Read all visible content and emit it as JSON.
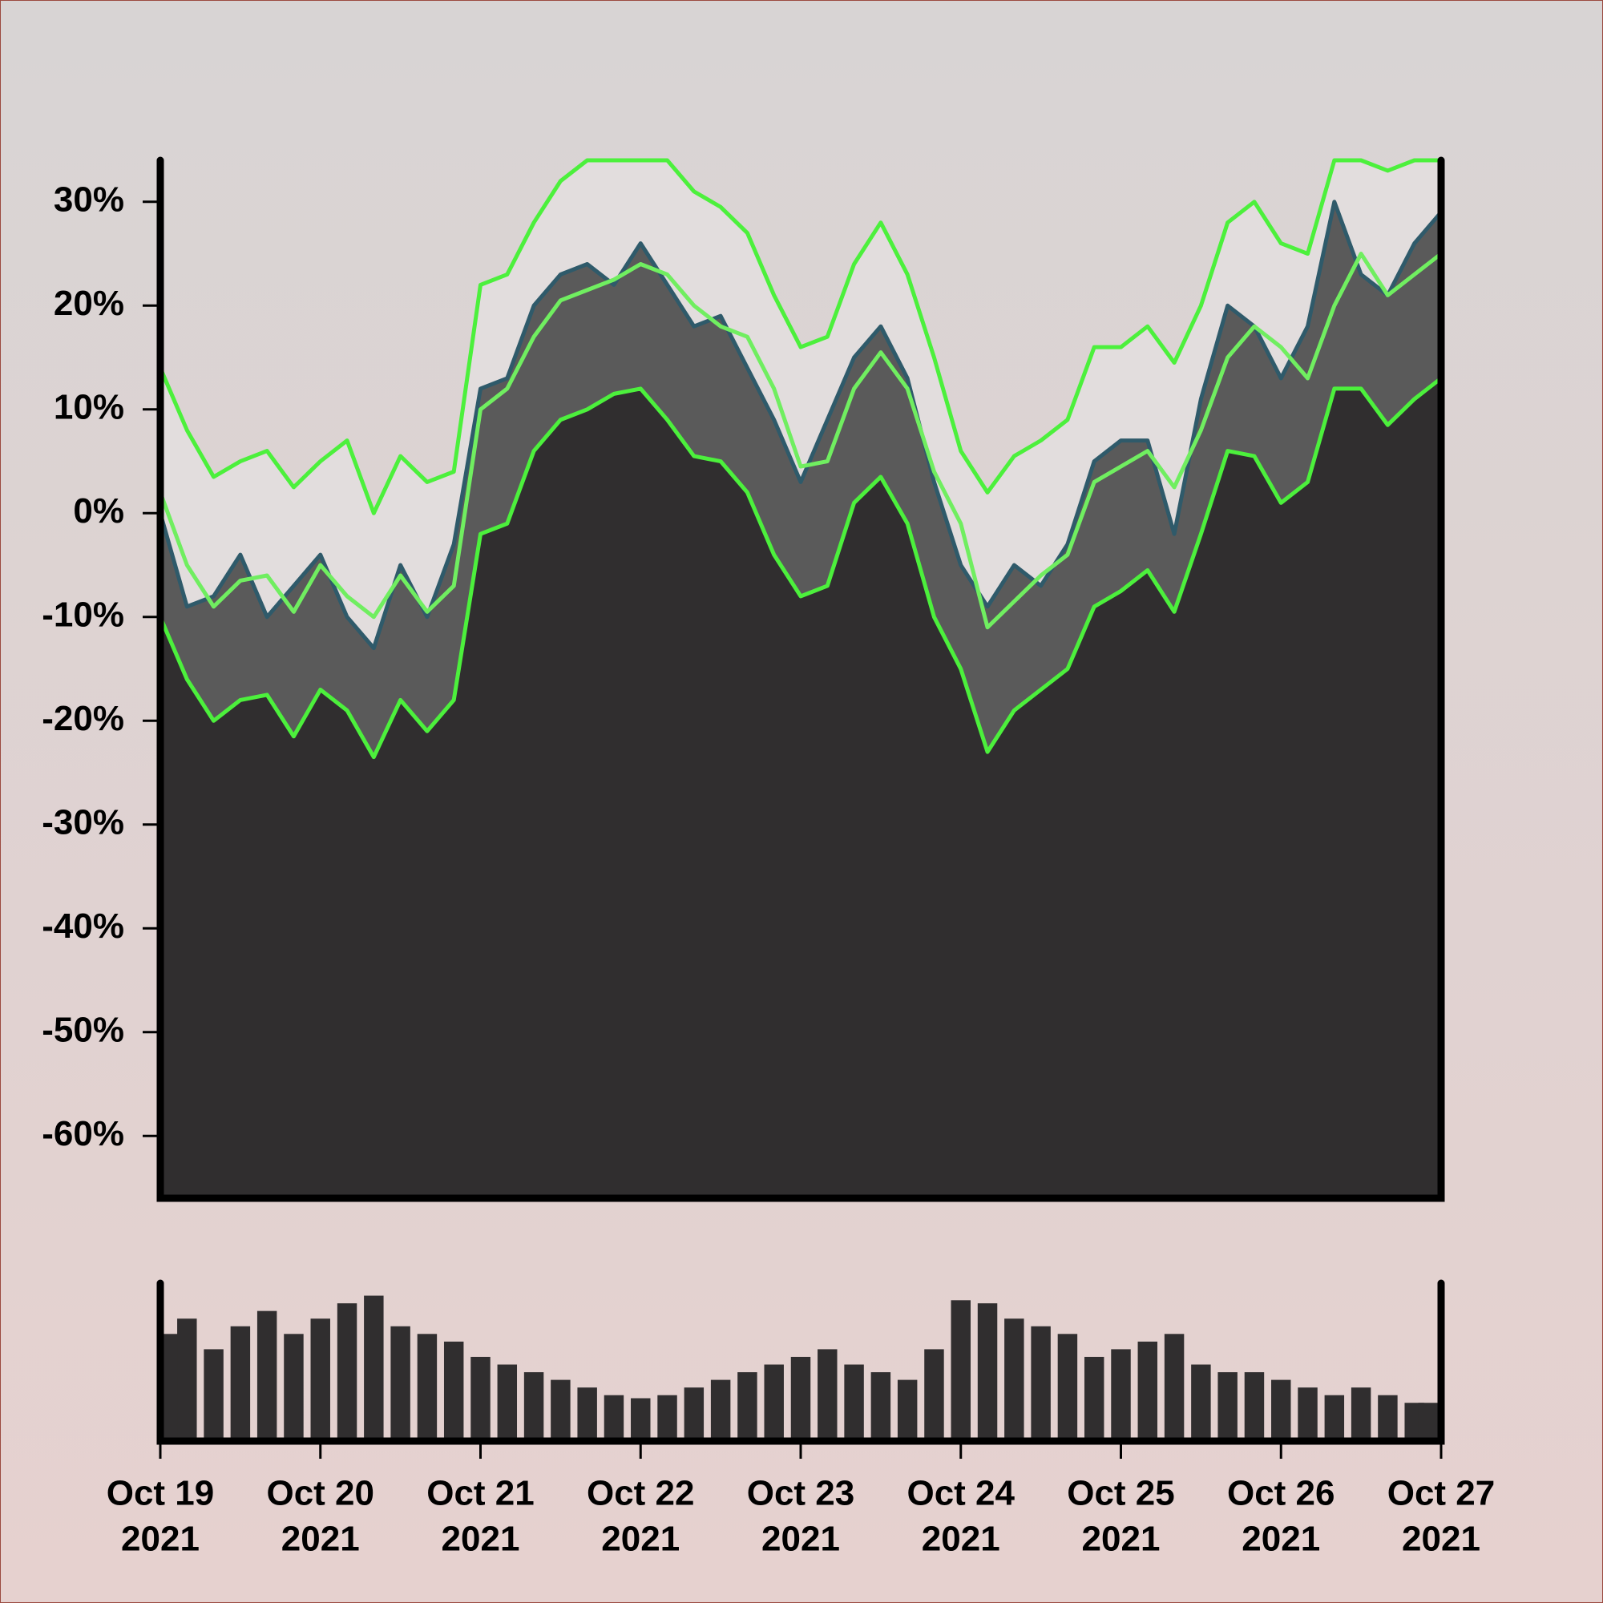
{
  "chart_data": [
    {
      "type": "area",
      "x": [
        "2021-10-19T00:00",
        "2021-10-19T04:00",
        "2021-10-19T08:00",
        "2021-10-19T12:00",
        "2021-10-19T16:00",
        "2021-10-19T20:00",
        "2021-10-20T00:00",
        "2021-10-20T04:00",
        "2021-10-20T08:00",
        "2021-10-20T12:00",
        "2021-10-20T16:00",
        "2021-10-20T20:00",
        "2021-10-21T00:00",
        "2021-10-21T04:00",
        "2021-10-21T08:00",
        "2021-10-21T12:00",
        "2021-10-21T16:00",
        "2021-10-21T20:00",
        "2021-10-22T00:00",
        "2021-10-22T04:00",
        "2021-10-22T08:00",
        "2021-10-22T12:00",
        "2021-10-22T16:00",
        "2021-10-22T20:00",
        "2021-10-23T00:00",
        "2021-10-23T04:00",
        "2021-10-23T08:00",
        "2021-10-23T12:00",
        "2021-10-23T16:00",
        "2021-10-23T20:00",
        "2021-10-24T00:00",
        "2021-10-24T04:00",
        "2021-10-24T08:00",
        "2021-10-24T12:00",
        "2021-10-24T16:00",
        "2021-10-24T20:00",
        "2021-10-25T00:00",
        "2021-10-25T04:00",
        "2021-10-25T08:00",
        "2021-10-25T12:00",
        "2021-10-25T16:00",
        "2021-10-25T20:00",
        "2021-10-26T00:00",
        "2021-10-26T04:00",
        "2021-10-26T08:00",
        "2021-10-26T12:00",
        "2021-10-26T16:00",
        "2021-10-26T20:00",
        "2021-10-27T00:00"
      ],
      "series": [
        {
          "color": "#4cf03c",
          "fill": "#e2dddd",
          "values": [
            14,
            8,
            3.5,
            5,
            6,
            2.5,
            5,
            7,
            0,
            5.5,
            3,
            4,
            22,
            23,
            28,
            32,
            34,
            34,
            34,
            34,
            31,
            29.5,
            27,
            21,
            16,
            17,
            24,
            28,
            23,
            15,
            6,
            2,
            5.5,
            7,
            9,
            16,
            16,
            18,
            14.5,
            20,
            28,
            30,
            26,
            25,
            34,
            34,
            33,
            34,
            34
          ]
        },
        {
          "color": "#2f5a6a",
          "fill": "#5a5a5a",
          "values": [
            0,
            -9,
            -8,
            -4,
            -10,
            -7,
            -4,
            -10,
            -13,
            -5,
            -10,
            -3,
            12,
            13,
            20,
            23,
            24,
            22,
            26,
            22,
            18,
            19,
            14,
            9,
            3,
            9,
            15,
            18,
            13,
            3,
            -5,
            -9,
            -5,
            -7,
            -3,
            5,
            7,
            7,
            -2,
            11,
            20,
            18,
            13,
            18,
            30,
            23,
            21,
            26,
            29
          ]
        },
        {
          "color": "#4cf03c",
          "fill": "#302e2f",
          "values": [
            -10,
            -16,
            -20,
            -18,
            -17.5,
            -21.5,
            -17,
            -19,
            -23.5,
            -18,
            -21,
            -18,
            -2,
            -1,
            6,
            9,
            10,
            11.5,
            12,
            9,
            5.5,
            5,
            2,
            -4,
            -8,
            -7,
            1,
            3.5,
            -1,
            -10,
            -15,
            -23,
            -19,
            -17,
            -15,
            -9,
            -7.5,
            -5.5,
            -9.5,
            -2,
            6,
            5.5,
            1,
            3,
            12,
            12,
            8.5,
            11,
            13
          ]
        },
        {
          "color": "#70ee60",
          "values": [
            2,
            -5,
            -9,
            -6.5,
            -6,
            -9.5,
            -5,
            -8,
            -10,
            -6,
            -9.5,
            -7,
            10,
            12,
            17,
            20.5,
            21.5,
            22.5,
            24,
            23,
            20,
            18,
            17,
            12,
            4.5,
            5,
            12,
            15.5,
            12,
            4,
            -1,
            -11,
            -8.5,
            -6,
            -4,
            3,
            4.5,
            6,
            2.5,
            8,
            15,
            18,
            16,
            13,
            20,
            25,
            21,
            23,
            25
          ]
        }
      ],
      "xlim": [
        "2021-10-19",
        "2021-10-27"
      ],
      "ylim": [
        -66,
        34
      ],
      "yticks": [
        {
          "value": 30,
          "label": "30%"
        },
        {
          "value": 20,
          "label": "20%"
        },
        {
          "value": 10,
          "label": "10%"
        },
        {
          "value": 0,
          "label": "0%"
        },
        {
          "value": -10,
          "label": "-10%"
        },
        {
          "value": -20,
          "label": "-20%"
        },
        {
          "value": -30,
          "label": "-30%"
        },
        {
          "value": -40,
          "label": "-40%"
        },
        {
          "value": -50,
          "label": "-50%"
        },
        {
          "value": -60,
          "label": "-60%"
        }
      ]
    },
    {
      "type": "bar",
      "color": "#302e2f",
      "values": [
        70,
        80,
        60,
        75,
        85,
        70,
        80,
        90,
        95,
        75,
        70,
        65,
        55,
        50,
        45,
        40,
        35,
        30,
        28,
        30,
        35,
        40,
        45,
        50,
        55,
        60,
        50,
        45,
        40,
        60,
        92,
        90,
        80,
        75,
        70,
        55,
        60,
        65,
        70,
        50,
        45,
        45,
        40,
        35,
        30,
        35,
        30,
        25,
        25
      ],
      "ylim": [
        0,
        100
      ],
      "xlim": [
        "2021-10-19",
        "2021-10-27"
      ],
      "xticks": [
        {
          "value": "2021-10-19",
          "label": [
            "Oct 19",
            "2021"
          ]
        },
        {
          "value": "2021-10-20",
          "label": [
            "Oct 20",
            "2021"
          ]
        },
        {
          "value": "2021-10-21",
          "label": [
            "Oct 21",
            "2021"
          ]
        },
        {
          "value": "2021-10-22",
          "label": [
            "Oct 22",
            "2021"
          ]
        },
        {
          "value": "2021-10-23",
          "label": [
            "Oct 23",
            "2021"
          ]
        },
        {
          "value": "2021-10-24",
          "label": [
            "Oct 24",
            "2021"
          ]
        },
        {
          "value": "2021-10-25",
          "label": [
            "Oct 25",
            "2021"
          ]
        },
        {
          "value": "2021-10-26",
          "label": [
            "Oct 26",
            "2021"
          ]
        },
        {
          "value": "2021-10-27",
          "label": [
            "Oct 27",
            "2021"
          ]
        }
      ]
    }
  ]
}
